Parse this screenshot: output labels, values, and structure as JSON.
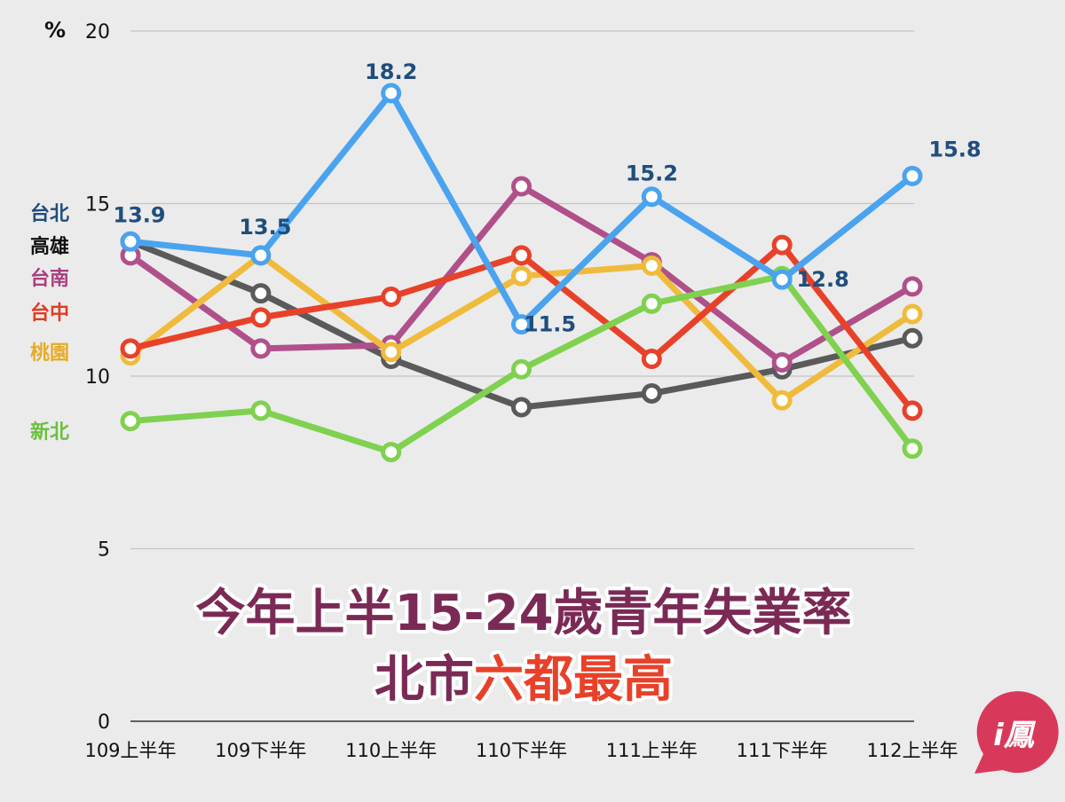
{
  "chart_data": {
    "type": "line",
    "unit_label": "%",
    "ylim": [
      0,
      20
    ],
    "yticks": [
      0,
      5,
      10,
      15,
      20
    ],
    "grid": true,
    "categories": [
      "109上半年",
      "109下半年",
      "110上半年",
      "110下半年",
      "111上半年",
      "111下半年",
      "112上半年"
    ],
    "series": [
      {
        "name": "台北",
        "color": "#4aa3ef",
        "legend_color": "#1f4e7d",
        "values": [
          13.9,
          13.5,
          18.2,
          11.5,
          15.2,
          12.8,
          15.8
        ]
      },
      {
        "name": "高雄",
        "color": "#5a5a5a",
        "legend_color": "#111111",
        "values": [
          13.9,
          12.4,
          10.5,
          9.1,
          9.5,
          10.2,
          11.1
        ]
      },
      {
        "name": "台南",
        "color": "#b0508a",
        "legend_color": "#a8407e",
        "values": [
          13.5,
          10.8,
          10.9,
          15.5,
          13.3,
          10.4,
          12.6
        ]
      },
      {
        "name": "台中",
        "color": "#e8412a",
        "legend_color": "#e23a22",
        "values": [
          10.8,
          11.7,
          12.3,
          13.5,
          10.5,
          13.8,
          9.0
        ]
      },
      {
        "name": "桃園",
        "color": "#f0bb3c",
        "legend_color": "#e6ac2a",
        "values": [
          10.6,
          13.5,
          10.7,
          12.9,
          13.2,
          9.3,
          11.8
        ]
      },
      {
        "name": "新北",
        "color": "#7fd14f",
        "legend_color": "#6cbf3d",
        "values": [
          8.7,
          9.0,
          7.8,
          10.2,
          12.1,
          12.9,
          7.9
        ]
      }
    ],
    "data_labels": [
      "13.9",
      "13.5",
      "18.2",
      "11.5",
      "15.2",
      "12.8",
      "15.8"
    ],
    "headline_line1": "今年上半15-24歲青年失業率",
    "headline_line2_a": "北市",
    "headline_line2_b": "六都最高",
    "colors": {
      "headline_purple": "#7a2a55",
      "headline_red": "#e8412a",
      "logo": "#d8395a"
    }
  },
  "logo": {
    "text": "i鳳"
  }
}
